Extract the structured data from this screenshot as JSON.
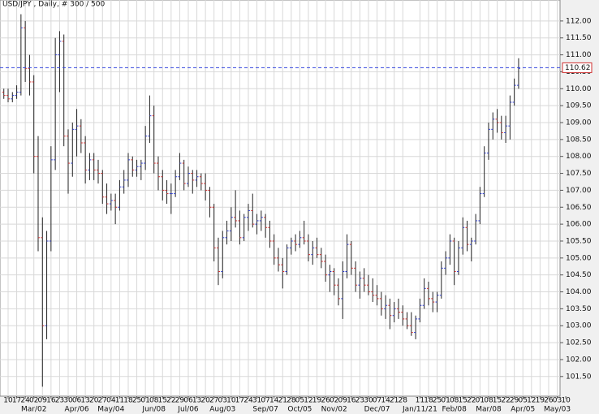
{
  "chart_data": {
    "type": "ohlc",
    "title": "USD/JPY , Daily, # 300 / 500",
    "up_color": "#2f3fd0",
    "down_color": "#d03030",
    "grid": true,
    "xlim": [
      -0.946,
      64.33
    ],
    "ylim": [
      100.92,
      112.62
    ],
    "yticks": [
      {
        "value": 101.5,
        "label": "101.50"
      },
      {
        "value": 102,
        "label": "102.00"
      },
      {
        "value": 102.5,
        "label": "102.50"
      },
      {
        "value": 103,
        "label": "103.00"
      },
      {
        "value": 103.5,
        "label": "103.50"
      },
      {
        "value": 104,
        "label": "104.00"
      },
      {
        "value": 104.5,
        "label": "104.50"
      },
      {
        "value": 105,
        "label": "105.00"
      },
      {
        "value": 105.5,
        "label": "105.50"
      },
      {
        "value": 106,
        "label": "106.00"
      },
      {
        "value": 106.5,
        "label": "106.50"
      },
      {
        "value": 107,
        "label": "107.00"
      },
      {
        "value": 107.5,
        "label": "107.50"
      },
      {
        "value": 108,
        "label": "108.00"
      },
      {
        "value": 108.5,
        "label": "108.50"
      },
      {
        "value": 109,
        "label": "109.00"
      },
      {
        "value": 109.5,
        "label": "109.50"
      },
      {
        "value": 110,
        "label": "110.00"
      },
      {
        "value": 110.5,
        "label": "110.50"
      },
      {
        "value": 111,
        "label": "111.00"
      },
      {
        "value": 111.5,
        "label": "111.50"
      },
      {
        "value": 112,
        "label": "112.00"
      }
    ],
    "xticks": [
      {
        "value": 0,
        "label": "10"
      },
      {
        "value": 1,
        "label": "17"
      },
      {
        "value": 2,
        "label": "24"
      },
      {
        "value": 3,
        "label": "02"
      },
      {
        "value": 4,
        "label": "09"
      },
      {
        "value": 5,
        "label": "16"
      },
      {
        "value": 6,
        "label": "23"
      },
      {
        "value": 7,
        "label": "30"
      },
      {
        "value": 8,
        "label": "06"
      },
      {
        "value": 9,
        "label": "13"
      },
      {
        "value": 10,
        "label": "20"
      },
      {
        "value": 11,
        "label": "27"
      },
      {
        "value": 12,
        "label": "04"
      },
      {
        "value": 13,
        "label": "11"
      },
      {
        "value": 14,
        "label": "18"
      },
      {
        "value": 15,
        "label": "25"
      },
      {
        "value": 16,
        "label": "01"
      },
      {
        "value": 17,
        "label": "08"
      },
      {
        "value": 18,
        "label": "15"
      },
      {
        "value": 19,
        "label": "22"
      },
      {
        "value": 20,
        "label": "29"
      },
      {
        "value": 21,
        "label": "06"
      },
      {
        "value": 22,
        "label": "13"
      },
      {
        "value": 23,
        "label": "20"
      },
      {
        "value": 24,
        "label": "27"
      },
      {
        "value": 25,
        "label": "03"
      },
      {
        "value": 26,
        "label": "10"
      },
      {
        "value": 27,
        "label": "17"
      },
      {
        "value": 28,
        "label": "24"
      },
      {
        "value": 29,
        "label": "31"
      },
      {
        "value": 30,
        "label": "07"
      },
      {
        "value": 31,
        "label": "14"
      },
      {
        "value": 32,
        "label": "21"
      },
      {
        "value": 33,
        "label": "28"
      },
      {
        "value": 34,
        "label": "05"
      },
      {
        "value": 35,
        "label": "12"
      },
      {
        "value": 36,
        "label": "19"
      },
      {
        "value": 37,
        "label": "26"
      },
      {
        "value": 38,
        "label": "02"
      },
      {
        "value": 39,
        "label": "09"
      },
      {
        "value": 40,
        "label": "16"
      },
      {
        "value": 41,
        "label": "23"
      },
      {
        "value": 42,
        "label": "30"
      },
      {
        "value": 43,
        "label": "07"
      },
      {
        "value": 44,
        "label": "14"
      },
      {
        "value": 45,
        "label": "21"
      },
      {
        "value": 46,
        "label": "28"
      },
      {
        "value": 48,
        "label": "11"
      },
      {
        "value": 49,
        "label": "18"
      },
      {
        "value": 50,
        "label": "25"
      },
      {
        "value": 51,
        "label": "01"
      },
      {
        "value": 52,
        "label": "08"
      },
      {
        "value": 53,
        "label": "15"
      },
      {
        "value": 54,
        "label": "22"
      },
      {
        "value": 55,
        "label": "01"
      },
      {
        "value": 56,
        "label": "08"
      },
      {
        "value": 57,
        "label": "15"
      },
      {
        "value": 58,
        "label": "22"
      },
      {
        "value": 59,
        "label": "29"
      },
      {
        "value": 60,
        "label": "05"
      },
      {
        "value": 61,
        "label": "12"
      },
      {
        "value": 62,
        "label": "19"
      },
      {
        "value": 63,
        "label": "26"
      },
      {
        "value": 64,
        "label": "03"
      },
      {
        "value": 65,
        "label": "10"
      }
    ],
    "month_ticks": [
      {
        "value": 3,
        "label": "Mar/02"
      },
      {
        "value": 8,
        "label": "Apr/06"
      },
      {
        "value": 12,
        "label": "May/04"
      },
      {
        "value": 17,
        "label": "Jun/08"
      },
      {
        "value": 21,
        "label": "Jul/06"
      },
      {
        "value": 25,
        "label": "Aug/03"
      },
      {
        "value": 30,
        "label": "Sep/07"
      },
      {
        "value": 34,
        "label": "Oct/05"
      },
      {
        "value": 38,
        "label": "Nov/02"
      },
      {
        "value": 43,
        "label": "Dec/07"
      },
      {
        "value": 48,
        "label": "Jan/11/21"
      },
      {
        "value": 52,
        "label": "Feb/08"
      },
      {
        "value": 56,
        "label": "Mar/08"
      },
      {
        "value": 60,
        "label": "Apr/05"
      },
      {
        "value": 64,
        "label": "May/03"
      }
    ],
    "current_price": {
      "value": 110.62,
      "label": "110.62"
    },
    "x": [
      -0.5,
      0,
      0.5,
      1,
      1.5,
      2,
      2.5,
      3,
      3.5,
      4,
      4.5,
      5,
      5.5,
      6,
      6.5,
      7,
      7.5,
      8,
      8.5,
      9,
      9.5,
      10,
      10.5,
      11,
      11.5,
      12,
      12.5,
      13,
      13.5,
      14,
      14.5,
      15,
      15.5,
      16,
      16.5,
      17,
      17.5,
      18,
      18.5,
      19,
      19.5,
      20,
      20.5,
      21,
      21.5,
      22,
      22.5,
      23,
      23.5,
      24,
      24.5,
      25,
      25.5,
      26,
      26.5,
      27,
      27.5,
      28,
      28.5,
      29,
      29.5,
      30,
      30.5,
      31,
      31.5,
      32,
      32.5,
      33,
      33.5,
      34,
      34.5,
      35,
      35.5,
      36,
      36.5,
      37,
      37.5,
      38,
      38.5,
      39,
      39.5,
      40,
      40.5,
      41,
      41.5,
      42,
      42.5,
      43,
      43.5,
      44,
      44.5,
      45,
      45.5,
      46,
      46.5,
      47,
      47.5,
      48,
      48.5,
      49,
      49.5,
      50,
      50.5,
      51,
      51.5,
      52,
      52.5,
      53,
      53.5,
      54,
      54.5,
      55,
      55.5,
      56,
      56.5,
      57,
      57.5,
      58,
      58.5,
      59,
      59.5
    ],
    "open": [
      109.9,
      109.8,
      109.7,
      109.8,
      109.9,
      111.8,
      110.6,
      110.2,
      108.0,
      105.6,
      103.0,
      105.5,
      107.9,
      111.0,
      111.4,
      108.6,
      107.8,
      108.8,
      108.9,
      108.4,
      107.6,
      107.9,
      107.6,
      107.5,
      106.8,
      106.6,
      106.7,
      106.5,
      107.1,
      107.3,
      107.9,
      107.6,
      107.7,
      107.8,
      108.6,
      109.2,
      107.8,
      107.4,
      107.0,
      106.9,
      106.9,
      107.4,
      107.8,
      107.2,
      107.5,
      107.3,
      107.4,
      107.2,
      107.0,
      106.5,
      105.3,
      104.6,
      105.6,
      105.8,
      106.2,
      106.1,
      105.6,
      106.2,
      106.4,
      106.0,
      106.1,
      106.2,
      105.9,
      105.5,
      105.0,
      104.8,
      104.6,
      105.3,
      105.5,
      105.4,
      105.6,
      105.5,
      105.1,
      105.3,
      105.1,
      104.9,
      104.5,
      104.6,
      104.2,
      103.8,
      104.6,
      105.4,
      104.7,
      104.2,
      104.4,
      104.2,
      104.0,
      103.9,
      103.8,
      103.5,
      103.6,
      103.3,
      103.5,
      103.4,
      103.2,
      103.0,
      102.8,
      103.2,
      103.6,
      104.1,
      103.8,
      103.7,
      103.9,
      104.7,
      105.0,
      105.5,
      104.6,
      105.3,
      105.9,
      105.4,
      105.5,
      106.1,
      106.9,
      108.1,
      108.8,
      109.1,
      109.0,
      108.7,
      108.9,
      109.6,
      110.1
    ],
    "high": [
      110.0,
      110.0,
      109.9,
      110.1,
      112.2,
      112.0,
      111.0,
      110.4,
      108.6,
      106.2,
      105.8,
      108.3,
      111.5,
      111.7,
      111.6,
      108.8,
      109.0,
      109.4,
      109.1,
      108.6,
      108.1,
      108.1,
      107.9,
      107.6,
      107.2,
      106.9,
      106.9,
      107.3,
      107.6,
      108.1,
      108.0,
      107.9,
      107.9,
      108.9,
      109.8,
      109.5,
      108.0,
      107.6,
      107.3,
      107.2,
      107.6,
      108.1,
      107.9,
      107.7,
      107.6,
      107.6,
      107.5,
      107.5,
      107.1,
      106.6,
      105.6,
      105.8,
      106.1,
      106.5,
      107.0,
      106.4,
      106.3,
      106.6,
      106.9,
      106.3,
      106.4,
      106.3,
      106.1,
      105.7,
      105.3,
      105.0,
      105.4,
      105.6,
      105.7,
      105.8,
      106.1,
      105.7,
      105.5,
      105.6,
      105.3,
      105.1,
      104.8,
      104.7,
      104.4,
      104.9,
      105.7,
      105.5,
      104.9,
      104.6,
      104.7,
      104.5,
      104.4,
      104.2,
      104.0,
      103.9,
      103.8,
      103.7,
      103.8,
      103.6,
      103.4,
      103.4,
      103.3,
      103.8,
      104.4,
      104.3,
      104.0,
      104.0,
      104.9,
      105.2,
      105.7,
      105.6,
      105.5,
      106.2,
      106.1,
      105.6,
      106.3,
      107.1,
      108.3,
      109.0,
      109.3,
      109.4,
      109.2,
      109.2,
      109.8,
      110.3,
      110.9
    ],
    "low": [
      109.7,
      109.6,
      109.6,
      109.7,
      109.8,
      110.2,
      109.8,
      107.5,
      105.2,
      101.2,
      102.6,
      105.2,
      107.6,
      109.9,
      108.3,
      106.9,
      107.4,
      108.0,
      108.1,
      107.2,
      107.3,
      107.3,
      107.2,
      106.6,
      106.3,
      106.4,
      106.0,
      106.4,
      106.9,
      107.1,
      107.4,
      107.4,
      107.3,
      107.6,
      108.4,
      107.5,
      107.0,
      106.7,
      106.6,
      106.3,
      106.8,
      107.3,
      107.0,
      107.1,
      106.9,
      107.1,
      107.0,
      106.7,
      106.2,
      104.9,
      104.2,
      104.4,
      105.4,
      105.5,
      105.9,
      105.4,
      105.5,
      105.8,
      105.9,
      105.7,
      105.8,
      105.6,
      105.3,
      104.8,
      104.6,
      104.1,
      104.5,
      105.1,
      105.2,
      105.3,
      105.4,
      104.9,
      104.8,
      105.0,
      104.7,
      104.3,
      104.0,
      103.9,
      103.6,
      103.2,
      104.4,
      104.5,
      104.0,
      103.8,
      104.0,
      103.9,
      103.7,
      103.6,
      103.3,
      103.2,
      102.9,
      103.1,
      103.2,
      103.0,
      102.9,
      102.7,
      102.6,
      103.1,
      103.5,
      103.6,
      103.4,
      103.4,
      103.8,
      104.5,
      104.8,
      104.2,
      104.5,
      105.1,
      105.2,
      104.9,
      105.4,
      106.0,
      106.8,
      107.9,
      108.5,
      108.7,
      108.5,
      108.4,
      108.5,
      109.5,
      110.0
    ],
    "close": [
      109.8,
      109.7,
      109.8,
      109.9,
      111.8,
      110.6,
      110.2,
      108.0,
      105.6,
      103.0,
      105.5,
      107.9,
      111.0,
      111.4,
      108.6,
      107.8,
      108.8,
      108.9,
      108.4,
      107.6,
      107.9,
      107.6,
      107.5,
      106.8,
      106.6,
      106.7,
      106.5,
      107.1,
      107.3,
      107.9,
      107.6,
      107.7,
      107.8,
      108.6,
      109.2,
      107.8,
      107.4,
      107.0,
      106.9,
      106.9,
      107.4,
      107.8,
      107.2,
      107.5,
      107.3,
      107.4,
      107.2,
      107.0,
      106.5,
      105.3,
      104.6,
      105.6,
      105.8,
      106.2,
      106.1,
      105.6,
      106.2,
      106.4,
      106.0,
      106.1,
      106.2,
      105.9,
      105.5,
      105.0,
      104.8,
      104.6,
      105.3,
      105.5,
      105.4,
      105.6,
      105.5,
      105.1,
      105.3,
      105.1,
      104.9,
      104.5,
      104.6,
      104.2,
      103.8,
      104.6,
      105.4,
      104.7,
      104.2,
      104.4,
      104.2,
      104.0,
      103.9,
      103.8,
      103.5,
      103.6,
      103.3,
      103.5,
      103.4,
      103.2,
      103.0,
      102.8,
      103.2,
      103.6,
      104.1,
      103.8,
      103.7,
      103.9,
      104.7,
      105.0,
      105.5,
      104.6,
      105.3,
      105.9,
      105.4,
      105.5,
      106.1,
      106.9,
      108.1,
      108.8,
      109.1,
      109.0,
      108.7,
      108.9,
      109.6,
      110.1,
      110.6
    ]
  }
}
